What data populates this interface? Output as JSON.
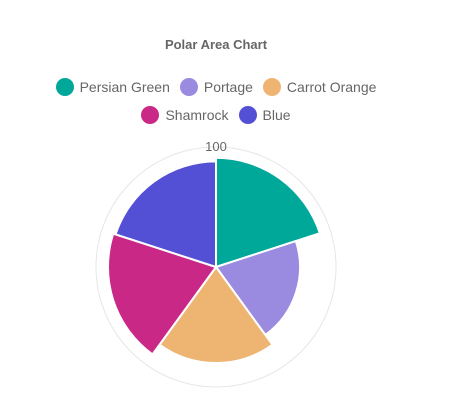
{
  "chart_data": {
    "type": "polar-area",
    "title": "Polar Area Chart",
    "categories": [
      "Persian Green",
      "Portage",
      "Carrot Orange",
      "Shamrock",
      "Blue"
    ],
    "values": [
      91,
      70,
      80,
      90,
      88
    ],
    "colors": [
      "#00a89a",
      "#9a8ae0",
      "#eeb572",
      "#ca2886",
      "#5450d6"
    ],
    "r_range": [
      0,
      100
    ],
    "tick_labels": [
      "100"
    ],
    "legend_position": "top"
  }
}
